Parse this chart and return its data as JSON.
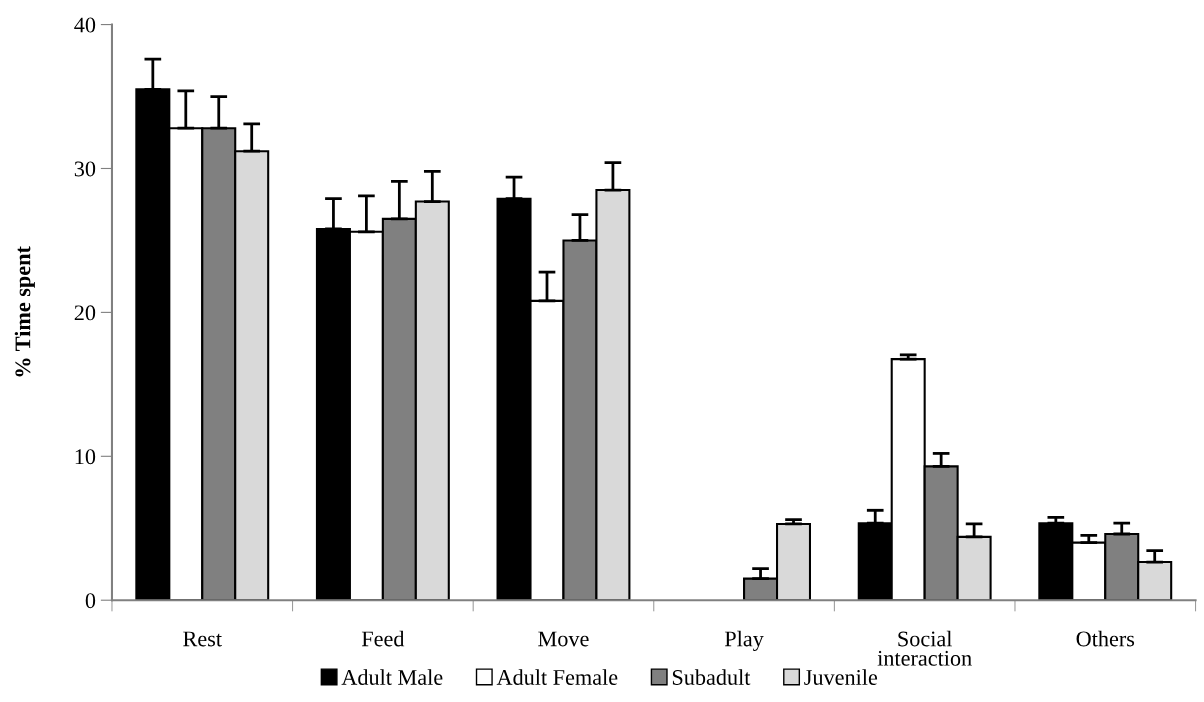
{
  "chart_data": {
    "type": "bar",
    "ylabel": "% Time spent",
    "categories": [
      "Rest",
      "Feed",
      "Move",
      "Play",
      "Social\ninteraction",
      "Others"
    ],
    "series": [
      {
        "name": "Adult Male",
        "color": "#000000",
        "values": [
          35.5,
          25.8,
          27.9,
          0,
          5.35,
          5.35
        ],
        "errors": [
          2.1,
          2.1,
          1.5,
          null,
          0.9,
          0.4
        ]
      },
      {
        "name": "Adult Female",
        "color": "#ffffff",
        "values": [
          32.8,
          25.6,
          20.8,
          0,
          16.75,
          4.0
        ],
        "errors": [
          2.6,
          2.5,
          2.0,
          null,
          0.3,
          0.5
        ]
      },
      {
        "name": "Subadult",
        "color": "#808080",
        "values": [
          32.8,
          26.5,
          25.0,
          1.5,
          9.3,
          4.6
        ],
        "errors": [
          2.2,
          2.6,
          1.8,
          0.7,
          0.9,
          0.75
        ]
      },
      {
        "name": "Juvenile",
        "color": "#d9d9d9",
        "values": [
          31.2,
          27.7,
          28.5,
          5.3,
          4.4,
          2.65
        ],
        "errors": [
          1.9,
          2.1,
          1.9,
          0.3,
          0.9,
          0.8
        ]
      }
    ],
    "ylim": [
      0,
      40
    ],
    "yticks": [
      0,
      10,
      20,
      30,
      40
    ],
    "grid": false,
    "legend": "bottom"
  }
}
